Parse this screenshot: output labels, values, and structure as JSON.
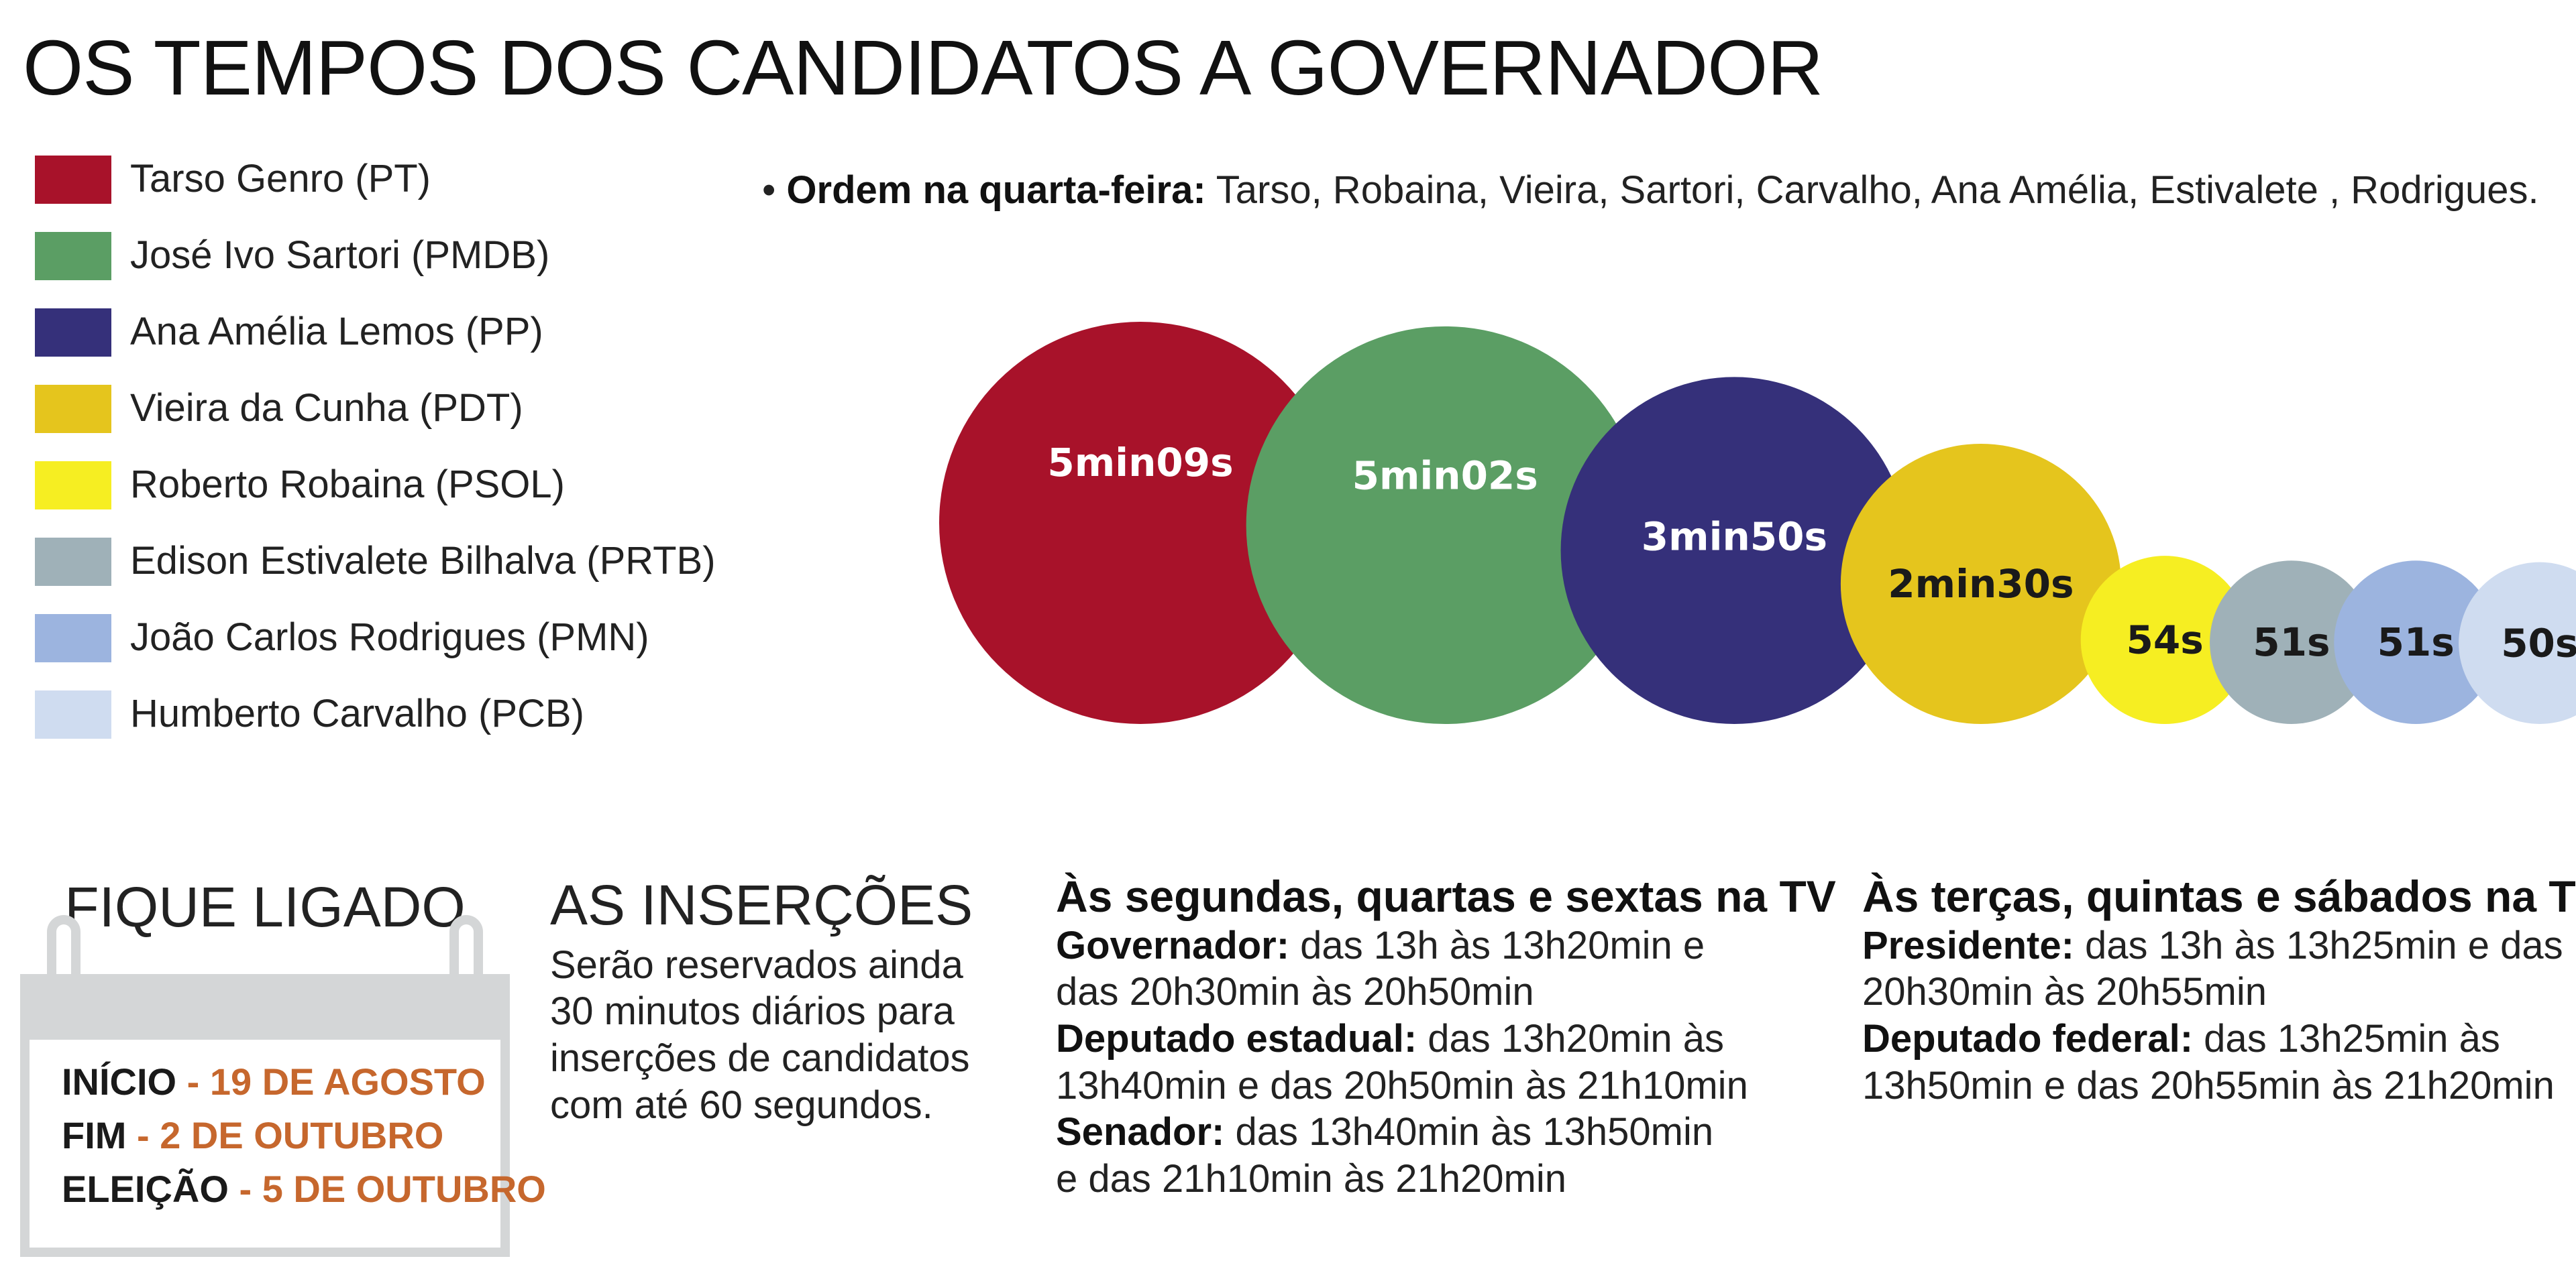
{
  "title": "OS TEMPOS DOS CANDIDATOS A GOVERNADOR",
  "legend": [
    {
      "label": "Tarso Genro (PT)",
      "color": "#a8122a"
    },
    {
      "label": "José Ivo Sartori (PMDB)",
      "color": "#5b9e64"
    },
    {
      "label": "Ana Amélia Lemos (PP)",
      "color": "#35307a"
    },
    {
      "label": "Vieira da Cunha (PDT)",
      "color": "#e5c51d"
    },
    {
      "label": "Roberto Robaina (PSOL)",
      "color": "#f6ee22"
    },
    {
      "label": "Edison Estivalete Bilhalva (PRTB)",
      "color": "#9fb1b8"
    },
    {
      "label": "João Carlos Rodrigues (PMN)",
      "color": "#9cb4df"
    },
    {
      "label": "Humberto Carvalho (PCB)",
      "color": "#cfdcf0"
    }
  ],
  "order_note": {
    "bold": "Ordem na quarta-feira:",
    "text": " Tarso, Robaina, Vieira, Sartori, Carvalho, Ana Amélia, Estivalete , Rodrigues."
  },
  "bubbles": [
    {
      "label": "5min09s",
      "seconds": 309,
      "color": "#a8122a",
      "text_color": "#ffffff"
    },
    {
      "label": "5min02s",
      "seconds": 302,
      "color": "#5b9e64",
      "text_color": "#ffffff"
    },
    {
      "label": "3min50s",
      "seconds": 230,
      "color": "#35307a",
      "text_color": "#ffffff"
    },
    {
      "label": "2min30s",
      "seconds": 150,
      "color": "#e5c51d",
      "text_color": "#1a1a1a"
    },
    {
      "label": "54s",
      "seconds": 54,
      "color": "#f6ee22",
      "text_color": "#1a1a1a"
    },
    {
      "label": "51s",
      "seconds": 51,
      "color": "#9fb1b8",
      "text_color": "#1a1a1a"
    },
    {
      "label": "51s",
      "seconds": 51,
      "color": "#9cb4df",
      "text_color": "#1a1a1a"
    },
    {
      "label": "50s",
      "seconds": 50,
      "color": "#cfdcf0",
      "text_color": "#1a1a1a"
    }
  ],
  "fique_ligado": {
    "title": "FIQUE LIGADO",
    "dates": [
      {
        "key": "INÍCIO",
        "value": " - 19 DE AGOSTO"
      },
      {
        "key": "FIM",
        "value": " - 2 DE OUTUBRO"
      },
      {
        "key": "ELEIÇÃO",
        "value": " - 5 DE OUTUBRO"
      }
    ]
  },
  "insercoes": {
    "title": "AS INSERÇÕES",
    "lines": [
      "Serão reservados ainda",
      "30 minutos diários para",
      "inserções de candidatos",
      "com até 60 segundos."
    ]
  },
  "schedule_mwf": {
    "title": "Às segundas, quartas e sextas na TV",
    "items": [
      {
        "label": "Governador:",
        "line1": " das 13h às 13h20min e",
        "line2": "das 20h30min às 20h50min"
      },
      {
        "label": "Deputado estadual:",
        "line1": " das 13h20min às",
        "line2": "13h40min e das 20h50min às 21h10min"
      },
      {
        "label": "Senador:",
        "line1": " das 13h40min às 13h50min",
        "line2": "e das 21h10min às 21h20min"
      }
    ]
  },
  "schedule_tts": {
    "title": "Às terças, quintas e sábados na TV",
    "items": [
      {
        "label": "Presidente:",
        "line1": " das 13h às 13h25min e das",
        "line2": "20h30min às 20h55min"
      },
      {
        "label": "Deputado federal:",
        "line1": " das 13h25min às",
        "line2": "13h50min e das 20h55min às 21h20min"
      }
    ]
  }
}
